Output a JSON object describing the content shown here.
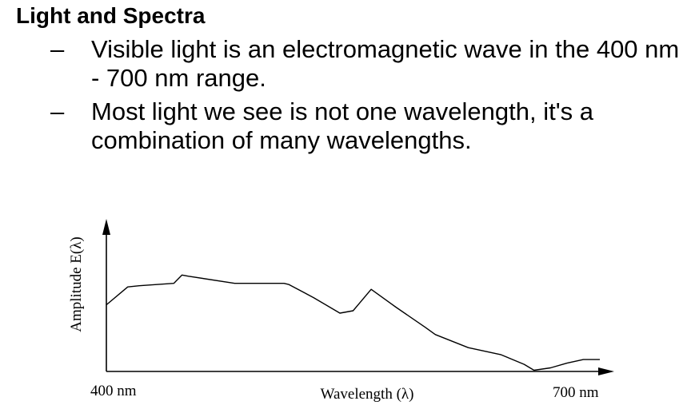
{
  "slide": {
    "title": "Light and Spectra",
    "bullets": [
      {
        "marker": "–",
        "text": "Visible light is an electromagnetic wave in the 400 nm - 700 nm range."
      },
      {
        "marker": "–",
        "text": "Most light we see is not one wavelength, it's a combination of many wavelengths."
      }
    ]
  },
  "chart_data": {
    "type": "line",
    "title": "",
    "xlabel": "Wavelength (λ)",
    "ylabel": "Amplitude E(λ)",
    "x_tick_labels": [
      "400 nm",
      "700 nm"
    ],
    "xlim": [
      400,
      700
    ],
    "ylim": [
      0,
      1
    ],
    "y_unit": "relative amplitude",
    "grid": false,
    "legend": "none",
    "line_color": "#000000",
    "series": [
      {
        "x": [
          400,
          413,
          420,
          441,
          446,
          450,
          478,
          508,
          511,
          526,
          542,
          550,
          561,
          576,
          594,
          600,
          620,
          640,
          654,
          660,
          670,
          680,
          690,
          700
        ],
        "y": [
          0.56,
          0.71,
          0.72,
          0.74,
          0.81,
          0.8,
          0.74,
          0.74,
          0.73,
          0.62,
          0.49,
          0.51,
          0.69,
          0.54,
          0.37,
          0.31,
          0.2,
          0.14,
          0.06,
          0.01,
          0.03,
          0.07,
          0.1,
          0.1
        ]
      }
    ]
  }
}
